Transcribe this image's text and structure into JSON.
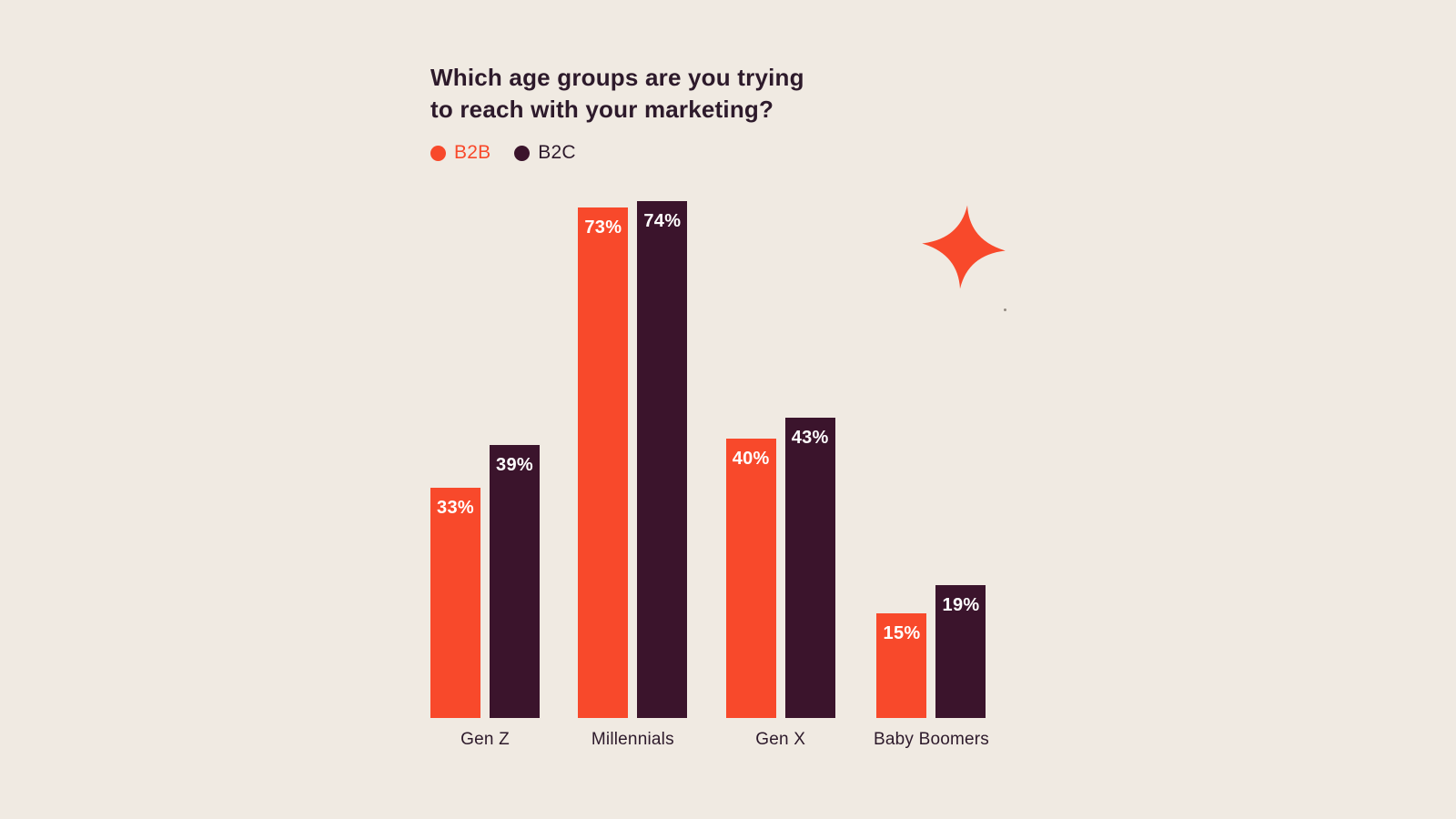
{
  "chart": {
    "title_line1": "Which age groups are you trying",
    "title_line2": "to reach with your marketing?"
  },
  "chart_data": {
    "type": "bar",
    "title": "Which age groups are you trying to reach with your marketing?",
    "categories": [
      "Gen Z",
      "Millennials",
      "Gen X",
      "Baby Boomers"
    ],
    "series": [
      {
        "name": "B2B",
        "color": "#F8492B",
        "values": [
          33,
          73,
          40,
          15
        ]
      },
      {
        "name": "B2C",
        "color": "#3B142C",
        "values": [
          39,
          74,
          43,
          19
        ]
      }
    ],
    "value_suffix": "%",
    "ylim": [
      0,
      77
    ],
    "grid": false,
    "legend_position": "top-left",
    "background_color": "#F0EAE2",
    "value_label_color": "#FFFFFF",
    "text_color": "#2D1A2B",
    "accent_color": "#F8492B"
  }
}
